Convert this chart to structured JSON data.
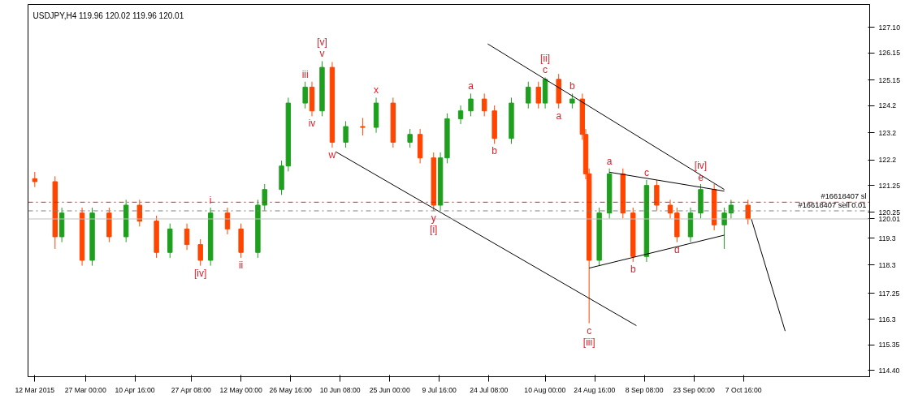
{
  "chart_data": {
    "type": "candlestick",
    "title": "USDJPY,H4 119.96 120.02 119.96 120.01",
    "xlim": [
      "2015-03-10",
      "2015-11-14"
    ],
    "ylim": [
      114.17,
      127.95
    ],
    "xticks": [
      {
        "value": "2015-03-12",
        "label": "12 Mar 2015"
      },
      {
        "value": "2015-03-27T00:00",
        "label": "27 Mar 00:00"
      },
      {
        "value": "2015-04-10T16:00",
        "label": "10 Apr 16:00"
      },
      {
        "value": "2015-04-27T08:00",
        "label": "27 Apr 08:00"
      },
      {
        "value": "2015-05-12T00:00",
        "label": "12 May 00:00"
      },
      {
        "value": "2015-05-26T16:00",
        "label": "26 May 16:00"
      },
      {
        "value": "2015-06-10T08:00",
        "label": "10 Jun 08:00"
      },
      {
        "value": "2015-06-25T00:00",
        "label": "25 Jun 00:00"
      },
      {
        "value": "2015-07-09T16:00",
        "label": "9 Jul 16:00"
      },
      {
        "value": "2015-07-24T08:00",
        "label": "24 Jul 08:00"
      },
      {
        "value": "2015-08-10T00:00",
        "label": "10 Aug 00:00"
      },
      {
        "value": "2015-08-24T16:00",
        "label": "24 Aug 16:00"
      },
      {
        "value": "2015-09-08T08:00",
        "label": "8 Sep 08:00"
      },
      {
        "value": "2015-09-23T00:00",
        "label": "23 Sep 00:00"
      },
      {
        "value": "2015-10-07T16:00",
        "label": "7 Oct 16:00"
      }
    ],
    "yticks": [
      {
        "value": 114.4,
        "label": "114.40"
      },
      115.35,
      116.3,
      117.25,
      118.3,
      119.3,
      120.01,
      120.25,
      121.25,
      122.2,
      123.2,
      124.2,
      125.15,
      126.15,
      {
        "value": 127.1,
        "label": "127.10"
      }
    ],
    "series": [
      {
        "color": "#1ea01e",
        "x": [
          "2015-03-20",
          "2015-03-29",
          "2015-04-08",
          "2015-04-21",
          "2015-05-03",
          "2015-05-17",
          "2015-05-19",
          "2015-05-24",
          "2015-05-26",
          "2015-05-31",
          "2015-06-05",
          "2015-06-12",
          "2015-06-21",
          "2015-07-01",
          "2015-07-10",
          "2015-07-12",
          "2015-07-16",
          "2015-07-19",
          "2015-07-31",
          "2015-08-05",
          "2015-08-10",
          "2015-08-18",
          "2015-08-26",
          "2015-08-29",
          "2015-09-09",
          "2015-09-22",
          "2015-09-25",
          "2015-10-02",
          "2015-10-04"
        ],
        "ohlc": [
          [
            119.35,
            120.43,
            119.15,
            120.23
          ],
          [
            118.48,
            120.43,
            118.28,
            120.23
          ],
          [
            119.35,
            120.72,
            119.15,
            120.52
          ],
          [
            118.77,
            119.84,
            118.57,
            119.64
          ],
          [
            118.48,
            120.43,
            118.28,
            120.23
          ],
          [
            118.77,
            120.72,
            118.57,
            120.52
          ],
          [
            120.52,
            121.3,
            120.32,
            121.1
          ],
          [
            121.1,
            122.17,
            120.9,
            121.97
          ],
          [
            121.97,
            124.5,
            121.77,
            124.3
          ],
          [
            124.3,
            125.09,
            124.1,
            124.89
          ],
          [
            124.01,
            125.85,
            123.81,
            125.62
          ],
          [
            122.85,
            123.63,
            122.65,
            123.43
          ],
          [
            123.4,
            124.5,
            123.2,
            124.3
          ],
          [
            122.85,
            123.34,
            122.65,
            123.14
          ],
          [
            120.52,
            122.47,
            120.32,
            122.27
          ],
          [
            122.27,
            123.92,
            122.07,
            123.72
          ],
          [
            123.72,
            124.21,
            123.52,
            124.01
          ],
          [
            124.01,
            124.65,
            123.81,
            124.45
          ],
          [
            122.99,
            124.5,
            122.79,
            124.3
          ],
          [
            124.3,
            125.09,
            124.1,
            124.89
          ],
          [
            124.3,
            125.25,
            124.1,
            125.18
          ],
          [
            124.3,
            124.65,
            124.1,
            124.45
          ],
          [
            118.48,
            120.43,
            118.28,
            120.23
          ],
          [
            120.23,
            121.88,
            120.03,
            121.68
          ],
          [
            118.62,
            121.45,
            118.42,
            121.25
          ],
          [
            119.35,
            120.43,
            119.15,
            120.23
          ],
          [
            120.23,
            121.3,
            120.03,
            121.1
          ],
          [
            119.79,
            120.43,
            118.9,
            120.23
          ],
          [
            120.23,
            120.72,
            120.03,
            120.52
          ]
        ]
      },
      {
        "color": "#ff4500",
        "x": [
          "2015-03-12",
          "2015-03-18",
          "2015-03-26",
          "2015-04-03",
          "2015-04-12",
          "2015-04-17",
          "2015-04-26",
          "2015-04-30",
          "2015-05-08",
          "2015-05-12",
          "2015-06-02",
          "2015-06-08",
          "2015-06-17",
          "2015-06-26",
          "2015-07-04",
          "2015-07-08",
          "2015-07-23",
          "2015-07-26",
          "2015-08-08",
          "2015-08-14",
          "2015-08-21",
          "2015-08-22",
          "2015-08-23",
          "2015-09-02",
          "2015-09-05",
          "2015-09-12",
          "2015-09-16",
          "2015-09-18",
          "2015-09-29",
          "2015-10-09"
        ],
        "ohlc": [
          [
            121.5,
            121.75,
            121.19,
            121.39
          ],
          [
            121.39,
            121.59,
            118.9,
            119.35
          ],
          [
            120.23,
            120.43,
            118.28,
            118.48
          ],
          [
            120.23,
            120.43,
            119.15,
            119.35
          ],
          [
            120.52,
            120.72,
            119.73,
            119.93
          ],
          [
            119.93,
            120.13,
            118.57,
            118.77
          ],
          [
            119.64,
            119.84,
            118.86,
            119.06
          ],
          [
            119.06,
            119.26,
            118.28,
            118.48
          ],
          [
            120.23,
            120.43,
            119.44,
            119.64
          ],
          [
            119.64,
            119.84,
            118.57,
            118.77
          ],
          [
            124.89,
            125.09,
            123.81,
            124.01
          ],
          [
            125.62,
            125.82,
            122.65,
            122.85
          ],
          [
            123.43,
            123.75,
            123.1,
            123.4
          ],
          [
            124.3,
            124.5,
            122.65,
            122.85
          ],
          [
            123.14,
            123.34,
            122.07,
            122.27
          ],
          [
            122.27,
            122.47,
            120.32,
            120.52
          ],
          [
            124.45,
            124.65,
            123.81,
            124.01
          ],
          [
            124.01,
            124.21,
            122.79,
            122.99
          ],
          [
            124.89,
            125.09,
            124.1,
            124.3
          ],
          [
            125.18,
            125.38,
            124.1,
            124.3
          ],
          [
            124.45,
            124.65,
            122.94,
            123.14
          ],
          [
            123.14,
            123.34,
            121.48,
            121.68
          ],
          [
            121.68,
            121.88,
            116.15,
            118.48
          ],
          [
            121.68,
            121.88,
            120.03,
            120.23
          ],
          [
            120.23,
            120.43,
            118.42,
            118.62
          ],
          [
            121.25,
            121.45,
            120.32,
            120.52
          ],
          [
            120.52,
            120.72,
            120.03,
            120.23
          ],
          [
            120.23,
            120.43,
            119.15,
            119.35
          ],
          [
            121.1,
            121.3,
            119.59,
            119.79
          ],
          [
            120.52,
            120.72,
            119.81,
            120.01
          ]
        ]
      },
      {
        "type": "line",
        "color": "#000000",
        "x": [
          "2015-06-09",
          "2015-09-06"
        ],
        "values": [
          122.5,
          116.06
        ]
      },
      {
        "type": "line",
        "color": "#000000",
        "x": [
          "2015-07-24",
          "2015-10-02"
        ],
        "values": [
          126.49,
          121.1
        ]
      },
      {
        "type": "line",
        "color": "#000000",
        "x": [
          "2015-08-29",
          "2015-10-02"
        ],
        "values": [
          121.74,
          121.04
        ]
      },
      {
        "type": "line",
        "color": "#000000",
        "x": [
          "2015-08-23",
          "2015-10-02"
        ],
        "values": [
          118.19,
          119.41
        ]
      },
      {
        "type": "line",
        "color": "#000000",
        "x": [
          "2015-10-10",
          "2015-10-20"
        ],
        "values": [
          120.01,
          115.86
        ]
      }
    ],
    "ref_lines": [
      {
        "axis": "y",
        "value": 120.63,
        "label": "#16618407 sl",
        "color": "#e0202a",
        "line_style": "dashdot"
      },
      {
        "axis": "y",
        "value": 120.31,
        "label": "#16618407 sell 0.01",
        "color": "#808080",
        "line_style": "dashdot"
      },
      {
        "axis": "y",
        "value": 120.01,
        "color": "#c0c0c0",
        "line_style": "solid"
      }
    ],
    "annotations": [
      {
        "text": "v",
        "x": "2015-06-05",
        "y": 125.85
      },
      {
        "text": "[v]",
        "x": "2015-06-05",
        "y": 125.85
      },
      {
        "text": "iii",
        "x": "2015-05-31",
        "y": 125.09
      },
      {
        "text": "iv",
        "x": "2015-06-02",
        "y": 123.81
      },
      {
        "text": "w",
        "x": "2015-06-08",
        "y": 122.65
      },
      {
        "text": "x",
        "x": "2015-06-21",
        "y": 124.5
      },
      {
        "text": "y",
        "x": "2015-07-08",
        "y": 120.32
      },
      {
        "text": "[i]",
        "x": "2015-07-08",
        "y": 120.32
      },
      {
        "text": "i",
        "x": "2015-05-03",
        "y": 120.43
      },
      {
        "text": "ii",
        "x": "2015-05-12",
        "y": 118.57
      },
      {
        "text": "[iv]",
        "x": "2015-04-30",
        "y": 118.28
      },
      {
        "text": "a",
        "x": "2015-07-19",
        "y": 124.65
      },
      {
        "text": "b",
        "x": "2015-07-26",
        "y": 122.79
      },
      {
        "text": "c",
        "x": "2015-08-10",
        "y": 125.25
      },
      {
        "text": "[ii]",
        "x": "2015-08-10",
        "y": 125.25
      },
      {
        "text": "b",
        "x": "2015-08-18",
        "y": 124.65
      },
      {
        "text": "a",
        "x": "2015-08-14",
        "y": 124.1
      },
      {
        "text": "a",
        "x": "2015-08-29",
        "y": 121.88
      },
      {
        "text": "c",
        "x": "2015-09-09",
        "y": 121.45
      },
      {
        "text": "e",
        "x": "2015-09-25",
        "y": 121.3
      },
      {
        "text": "[iv]",
        "x": "2015-09-25",
        "y": 121.3
      },
      {
        "text": "b",
        "x": "2015-09-05",
        "y": 118.42
      },
      {
        "text": "d",
        "x": "2015-09-18",
        "y": 119.15
      },
      {
        "text": "c",
        "x": "2015-08-23",
        "y": 116.15
      },
      {
        "text": "[iii]",
        "x": "2015-08-23",
        "y": 116.15
      }
    ]
  }
}
